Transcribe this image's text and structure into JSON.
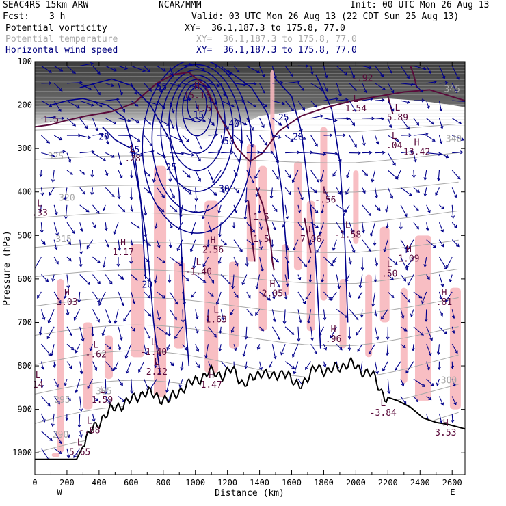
{
  "header": {
    "model": "SEAC4RS 15km ARW",
    "producer": "NCAR/MMM",
    "init": "Init: 00 UTC Mon 26 Aug 13",
    "fcst_label": "Fcst:",
    "fcst_value": "3 h",
    "valid": "Valid: 03 UTC Mon 26 Aug 13 (22 CDT Sun 25 Aug 13)",
    "fields": [
      {
        "name": "Potential vorticity",
        "xy": "XY=  36.1,187.3 to 175.8, 77.0",
        "color": "#000000"
      },
      {
        "name": "Potential temperature",
        "xy": "XY=  36.1,187.3 to 175.8, 77.0",
        "color": "#a8a8a8"
      },
      {
        "name": "Horizontal wind speed",
        "xy": "XY=  36.1,187.3 to 175.8, 77.0",
        "color": "#00007f"
      }
    ]
  },
  "chart_data": {
    "type": "cross-section",
    "xlabel": "Distance (km)",
    "ylabel": "Pressure (hPa)",
    "x_ticks": [
      "0",
      "200",
      "400",
      "600",
      "800",
      "1000",
      "1200",
      "1400",
      "1600",
      "1800",
      "2000",
      "2200",
      "2400",
      "2600"
    ],
    "y_ticks": [
      "100",
      "200",
      "300",
      "400",
      "500",
      "600",
      "700",
      "800",
      "900",
      "1000"
    ],
    "xlim": [
      0,
      2680
    ],
    "ylim": [
      1050,
      100
    ],
    "y_scale": "linear",
    "end_labels": {
      "west": "W",
      "east": "E"
    },
    "terrain": [
      {
        "x": 0,
        "p": 1015
      },
      {
        "x": 260,
        "p": 1015
      },
      {
        "x": 300,
        "p": 985
      },
      {
        "x": 350,
        "p": 950
      },
      {
        "x": 420,
        "p": 920
      },
      {
        "x": 500,
        "p": 895
      },
      {
        "x": 600,
        "p": 880
      },
      {
        "x": 680,
        "p": 860
      },
      {
        "x": 760,
        "p": 870
      },
      {
        "x": 840,
        "p": 880
      },
      {
        "x": 920,
        "p": 850
      },
      {
        "x": 1000,
        "p": 835
      },
      {
        "x": 1080,
        "p": 815
      },
      {
        "x": 1160,
        "p": 820
      },
      {
        "x": 1230,
        "p": 810
      },
      {
        "x": 1300,
        "p": 840
      },
      {
        "x": 1360,
        "p": 830
      },
      {
        "x": 1420,
        "p": 810
      },
      {
        "x": 1480,
        "p": 830
      },
      {
        "x": 1550,
        "p": 810
      },
      {
        "x": 1620,
        "p": 845
      },
      {
        "x": 1700,
        "p": 830
      },
      {
        "x": 1760,
        "p": 800
      },
      {
        "x": 1830,
        "p": 815
      },
      {
        "x": 1900,
        "p": 800
      },
      {
        "x": 1960,
        "p": 795
      },
      {
        "x": 2040,
        "p": 810
      },
      {
        "x": 2100,
        "p": 820
      },
      {
        "x": 2180,
        "p": 870
      },
      {
        "x": 2260,
        "p": 880
      },
      {
        "x": 2340,
        "p": 895
      },
      {
        "x": 2420,
        "p": 920
      },
      {
        "x": 2500,
        "p": 930
      },
      {
        "x": 2580,
        "p": 935
      },
      {
        "x": 2680,
        "p": 945
      }
    ],
    "theta_labels": [
      {
        "text": "345",
        "x": 2600,
        "p": 170
      },
      {
        "text": "340",
        "x": 2610,
        "p": 285
      },
      {
        "text": "325",
        "x": 130,
        "p": 325
      },
      {
        "text": "320",
        "x": 200,
        "p": 420
      },
      {
        "text": "315",
        "x": 180,
        "p": 515
      },
      {
        "text": "305",
        "x": 430,
        "p": 865
      },
      {
        "text": "295",
        "x": 170,
        "p": 885
      },
      {
        "text": "290",
        "x": 160,
        "p": 965
      },
      {
        "text": "300",
        "x": 2580,
        "p": 840
      }
    ],
    "wind_labels": [
      {
        "text": "55",
        "x": 790,
        "p": 165
      },
      {
        "text": "50",
        "x": 1210,
        "p": 290
      },
      {
        "text": "40",
        "x": 1240,
        "p": 250
      },
      {
        "text": "30",
        "x": 1180,
        "p": 400
      },
      {
        "text": "25",
        "x": 1550,
        "p": 235
      },
      {
        "text": "25",
        "x": 620,
        "p": 310
      },
      {
        "text": "25",
        "x": 850,
        "p": 350
      },
      {
        "text": "20",
        "x": 430,
        "p": 280
      },
      {
        "text": "20",
        "x": 1640,
        "p": 280
      },
      {
        "text": "20",
        "x": 700,
        "p": 620
      },
      {
        "text": "15",
        "x": 1020,
        "p": 230
      }
    ],
    "pv_labels": [
      {
        "text": "1.5",
        "x": 100,
        "p": 240
      },
      {
        "text": "1.5",
        "x": 1050,
        "p": 215
      },
      {
        "text": "1.5",
        "x": 1410,
        "p": 465
      },
      {
        "text": "1.5",
        "x": 1410,
        "p": 515
      },
      {
        "text": "-.92",
        "x": 2040,
        "p": 145
      }
    ],
    "extrema": [
      {
        "type": "L",
        "value": "1.54",
        "x": 2000,
        "p": 215
      },
      {
        "type": "L",
        "value": "5.89",
        "x": 2260,
        "p": 235
      },
      {
        "type": "L",
        "value": ".04",
        "x": 2240,
        "p": 300
      },
      {
        "type": "H",
        "value": "13.42",
        "x": 2380,
        "p": 315
      },
      {
        "type": "H",
        "value": "15.13",
        "x": 1010,
        "p": 185
      },
      {
        "type": "L",
        "value": ".28",
        "x": 610,
        "p": 330
      },
      {
        "type": "L",
        "value": ".33",
        "x": 30,
        "p": 455
      },
      {
        "type": "H",
        "value": "1.17",
        "x": 550,
        "p": 545
      },
      {
        "type": "H",
        "value": "2.56",
        "x": 1110,
        "p": 540
      },
      {
        "type": "L",
        "value": "-.56",
        "x": 1810,
        "p": 425
      },
      {
        "type": "L",
        "value": "7.96",
        "x": 1720,
        "p": 515
      },
      {
        "type": "L",
        "value": "-1.58",
        "x": 1950,
        "p": 505
      },
      {
        "type": "H",
        "value": "1.09",
        "x": 2330,
        "p": 560
      },
      {
        "type": "L",
        "value": ".50",
        "x": 2210,
        "p": 595
      },
      {
        "type": "L",
        "value": "-1.40",
        "x": 1020,
        "p": 590
      },
      {
        "type": "H",
        "value": "2.05",
        "x": 1480,
        "p": 640
      },
      {
        "type": "H",
        "value": "1.03",
        "x": 200,
        "p": 660
      },
      {
        "type": "H",
        "value": ".81",
        "x": 2550,
        "p": 660
      },
      {
        "type": "L",
        "value": "1.63",
        "x": 1130,
        "p": 700
      },
      {
        "type": "H",
        "value": ".96",
        "x": 1860,
        "p": 745
      },
      {
        "type": "L",
        "value": "-.62",
        "x": 380,
        "p": 780
      },
      {
        "type": "L",
        "value": "-1.40",
        "x": 740,
        "p": 775
      },
      {
        "type": "L",
        "value": "2.22",
        "x": 760,
        "p": 820
      },
      {
        "type": "L",
        "value": "14",
        "x": 20,
        "p": 850
      },
      {
        "type": "H",
        "value": "1.47",
        "x": 1100,
        "p": 850
      },
      {
        "type": "L",
        "value": "1.59",
        "x": 420,
        "p": 885
      },
      {
        "type": "L",
        "value": "-3.84",
        "x": 2170,
        "p": 915
      },
      {
        "type": "L",
        "value": "-.68",
        "x": 340,
        "p": 955
      },
      {
        "type": "H",
        "value": "3.53",
        "x": 2560,
        "p": 960
      },
      {
        "type": "L",
        "value": "5.65",
        "x": 280,
        "p": 1005
      }
    ]
  },
  "colors": {
    "pv": "#5a0a3a",
    "theta": "#a8a8a8",
    "wind": "#00008b",
    "pv_shading": "#f7b7bd",
    "strat_shading": "#4a4a4a",
    "terrain": "#000000"
  }
}
